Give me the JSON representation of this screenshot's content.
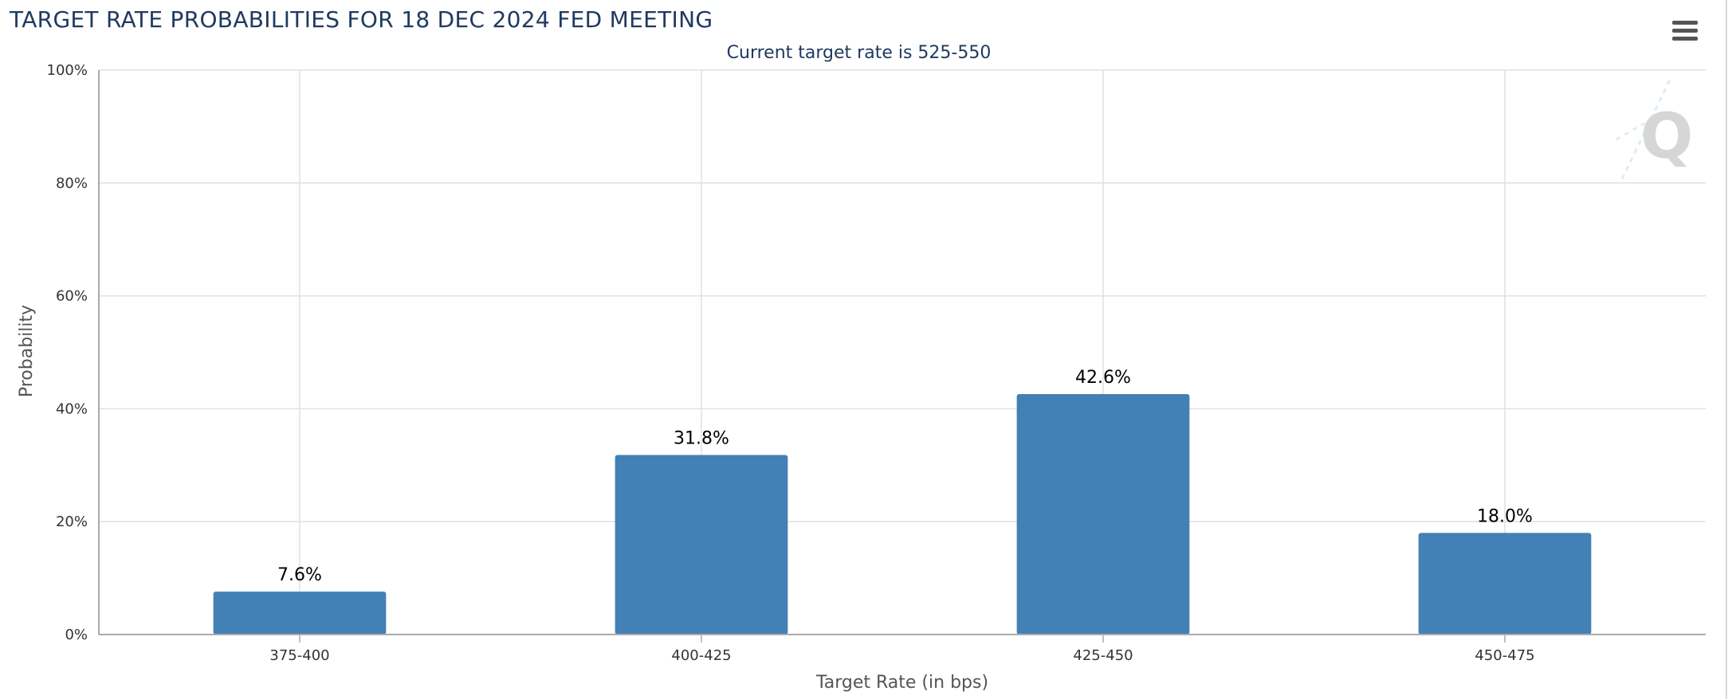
{
  "chart_data": {
    "type": "bar",
    "title": "TARGET RATE PROBABILITIES FOR 18 DEC 2024 FED MEETING",
    "subtitle": "Current target rate is 525-550",
    "xlabel": "Target Rate (in bps)",
    "ylabel": "Probability",
    "categories": [
      "375-400",
      "400-425",
      "425-450",
      "450-475"
    ],
    "values": [
      7.6,
      31.8,
      42.6,
      18.0
    ],
    "data_labels": [
      "7.6%",
      "31.8%",
      "42.6%",
      "18.0%"
    ],
    "ylim": [
      0,
      100
    ],
    "yticks": [
      0,
      20,
      40,
      60,
      80,
      100
    ],
    "ytick_labels": [
      "0%",
      "20%",
      "40%",
      "60%",
      "80%",
      "100%"
    ],
    "grid": true,
    "bar_color": "#4380b6",
    "grid_color": "#e0e0e0",
    "axis_color": "#aaaaaa"
  },
  "ui": {
    "menu_icon": "hamburger-menu-icon",
    "watermark_icon": "q-logo-icon"
  }
}
